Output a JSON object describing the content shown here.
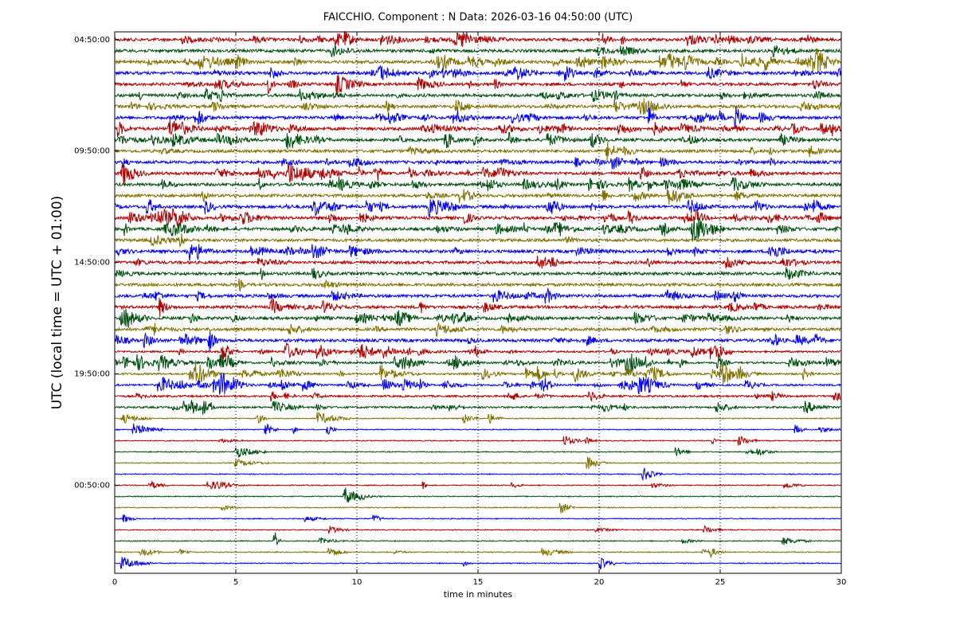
{
  "chart_data": {
    "type": "helicorder",
    "title": "FAICCHIO. Component : N Data: 2026-03-16 04:50:00 (UTC)",
    "xlabel": "time in minutes",
    "ylabel": "UTC (local time = UTC + 01:00)",
    "xlim": [
      0,
      30
    ],
    "xticks": [
      0,
      5,
      10,
      15,
      20,
      25,
      30
    ],
    "ylim": [
      -0.7,
      47.9
    ],
    "yticks": [
      {
        "value": 0,
        "label": "04:50:00"
      },
      {
        "value": 10,
        "label": "09:50:00"
      },
      {
        "value": 20,
        "label": "14:50:00"
      },
      {
        "value": 30,
        "label": "19:50:00"
      },
      {
        "value": 40,
        "label": "00:50:00"
      }
    ],
    "colors": [
      "#b00000",
      "#004d10",
      "#807000",
      "#0000ff"
    ],
    "grid": true
  }
}
